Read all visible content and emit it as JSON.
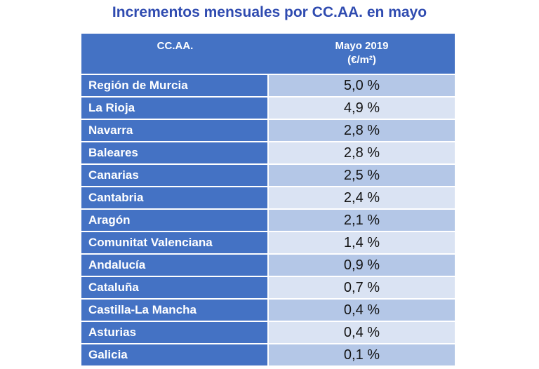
{
  "title": "Incrementos mensuales por CC.AA. en mayo",
  "colors": {
    "title": "#2f4bb0",
    "header_bg": "#4472c4",
    "region_bg": "#4472c4",
    "value_bg_dark": "#b4c7e7",
    "value_bg_light": "#dae3f3"
  },
  "chart_data": {
    "type": "table",
    "title": "Incrementos mensuales por CC.AA. en mayo",
    "columns": [
      "CC.AA.",
      "Mayo 2019",
      "(€/m²)"
    ],
    "rows": [
      {
        "region": "Región de Murcia",
        "value": "5,0 %"
      },
      {
        "region": "La Rioja",
        "value": "4,9 %"
      },
      {
        "region": "Navarra",
        "value": "2,8 %"
      },
      {
        "region": "Baleares",
        "value": "2,8 %"
      },
      {
        "region": "Canarias",
        "value": "2,5 %"
      },
      {
        "region": "Cantabria",
        "value": "2,4 %"
      },
      {
        "region": "Aragón",
        "value": "2,1 %"
      },
      {
        "region": "Comunitat Valenciana",
        "value": "1,4 %"
      },
      {
        "region": "Andalucía",
        "value": "0,9 %"
      },
      {
        "region": "Cataluña",
        "value": "0,7 %"
      },
      {
        "region": "Castilla-La Mancha",
        "value": "0,4 %"
      },
      {
        "region": "Asturias",
        "value": "0,4 %"
      },
      {
        "region": "Galicia",
        "value": "0,1 %"
      }
    ]
  }
}
